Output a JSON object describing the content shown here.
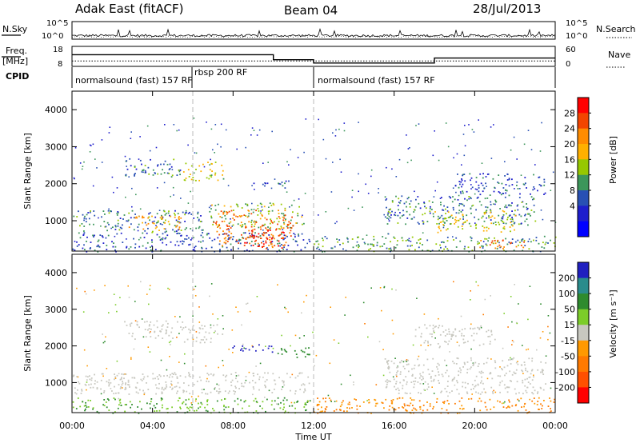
{
  "header": {
    "station": "Adak East (fitACF)",
    "beam": "Beam 04",
    "date": "28/Jul/2013"
  },
  "noise_panel": {
    "left_label": "N.Sky",
    "left_ticks": [
      "10^5",
      "10^0"
    ],
    "right_ticks": [
      "10^5",
      "10^0"
    ],
    "right_label": "N.Search"
  },
  "freq_panel": {
    "left_label_1": "Freq.",
    "left_label_2": "[MHz]",
    "left_ticks": [
      "18",
      "8"
    ],
    "right_ticks": [
      "60",
      "0"
    ],
    "right_label": "Nave"
  },
  "cpid_panel": {
    "label": "CPID",
    "segments": [
      {
        "text": "normalsound (fast) 157 RF",
        "start_hr": 0,
        "end_hr": 6
      },
      {
        "text": "rbsp 200 RF",
        "start_hr": 6,
        "end_hr": 12
      },
      {
        "text": "normalsound (fast) 157 RF",
        "start_hr": 12,
        "end_hr": 24
      }
    ]
  },
  "power_panel": {
    "ylabel": "Slant Range [km]",
    "colorbar_label": "Power [dB]",
    "colorbar_ticks": [
      "28",
      "24",
      "20",
      "16",
      "12",
      "8",
      "4"
    ],
    "colors": [
      "#ff0000",
      "#f24500",
      "#ff8c00",
      "#ffb000",
      "#96c800",
      "#3c965a",
      "#2850b4",
      "#1e1ecc",
      "#0000ff"
    ]
  },
  "velocity_panel": {
    "ylabel": "Slant Range [km]",
    "colorbar_label": "Velocity [m s⁻¹]",
    "colorbar_ticks": [
      "200",
      "100",
      "50",
      "15",
      "-15",
      "-50",
      "-100",
      "-200"
    ],
    "colors": [
      "#2020c0",
      "#2a8c8c",
      "#2e8b2e",
      "#7ccd2a",
      "#c8c8c0",
      "#ff9900",
      "#ff7a00",
      "#ff5000",
      "#ff0000"
    ]
  },
  "xaxis": {
    "label": "Time UT",
    "ticks": [
      "00:00",
      "04:00",
      "08:00",
      "12:00",
      "16:00",
      "20:00",
      "00:00"
    ]
  },
  "chart_data": {
    "type": "heatmap",
    "title": "Adak East (fitACF)",
    "xlabel": "Time UT",
    "ylabel": "Slant Range [km]",
    "xlim_hours": [
      0,
      24
    ],
    "ylim_km": [
      180,
      4500
    ],
    "y_ticks_km": [
      1000,
      2000,
      3000,
      4000
    ],
    "freq_mhz_segments": [
      {
        "start_hr": 0,
        "end_hr": 10,
        "value": 15
      },
      {
        "start_hr": 10,
        "end_hr": 12,
        "value": 12
      },
      {
        "start_hr": 12,
        "end_hr": 18,
        "value": 10
      },
      {
        "start_hr": 18,
        "end_hr": 24,
        "value": 13
      }
    ],
    "nave_dotted": 16,
    "power_regions": [
      {
        "t0": 0.0,
        "t1": 11.8,
        "r0": 180,
        "r1": 700,
        "db": 8
      },
      {
        "t0": 0.0,
        "t1": 6.5,
        "r0": 700,
        "r1": 1300,
        "db": 10
      },
      {
        "t0": 2.8,
        "t1": 5.4,
        "r0": 750,
        "r1": 1150,
        "db": 20
      },
      {
        "t0": 6.8,
        "t1": 11.5,
        "r0": 800,
        "r1": 1500,
        "db": 14
      },
      {
        "t0": 7.0,
        "t1": 11.0,
        "r0": 300,
        "r1": 1300,
        "db": 24
      },
      {
        "t0": 8.5,
        "t1": 10.5,
        "r0": 250,
        "r1": 800,
        "db": 28
      },
      {
        "t0": 2.5,
        "t1": 5.5,
        "r0": 2200,
        "r1": 2700,
        "db": 10
      },
      {
        "t0": 5.5,
        "t1": 7.5,
        "r0": 2100,
        "r1": 2600,
        "db": 16
      },
      {
        "t0": 9.0,
        "t1": 11.0,
        "r0": 1900,
        "r1": 2100,
        "db": 8
      },
      {
        "t0": 12.0,
        "t1": 24.0,
        "r0": 180,
        "r1": 600,
        "db": 12
      },
      {
        "t0": 15.5,
        "t1": 23.0,
        "r0": 900,
        "r1": 1700,
        "db": 10
      },
      {
        "t0": 18.0,
        "t1": 22.0,
        "r0": 700,
        "r1": 1300,
        "db": 16
      },
      {
        "t0": 19.0,
        "t1": 23.5,
        "r0": 1700,
        "r1": 2300,
        "db": 8
      },
      {
        "t0": 20.0,
        "t1": 22.5,
        "r0": 250,
        "r1": 500,
        "db": 24
      }
    ],
    "velocity_regions": [
      {
        "t0": 0.0,
        "t1": 11.8,
        "r0": 700,
        "r1": 1300,
        "v": 0
      },
      {
        "t0": 2.5,
        "t1": 5.5,
        "r0": 2200,
        "r1": 2700,
        "v": 0
      },
      {
        "t0": 5.5,
        "t1": 7.5,
        "r0": 2100,
        "r1": 2600,
        "v": 0
      },
      {
        "t0": 7.8,
        "t1": 10.0,
        "r0": 1850,
        "r1": 2050,
        "v": 200
      },
      {
        "t0": 10.0,
        "t1": 11.8,
        "r0": 1700,
        "r1": 2000,
        "v": 50
      },
      {
        "t0": 0.0,
        "t1": 11.8,
        "r0": 180,
        "r1": 600,
        "v": 30
      },
      {
        "t0": 12.0,
        "t1": 24.0,
        "r0": 180,
        "r1": 600,
        "v": -50
      },
      {
        "t0": 15.5,
        "t1": 23.5,
        "r0": 700,
        "r1": 1700,
        "v": 0
      },
      {
        "t0": 17.0,
        "t1": 21.0,
        "r0": 2000,
        "r1": 2600,
        "v": 0
      }
    ]
  }
}
